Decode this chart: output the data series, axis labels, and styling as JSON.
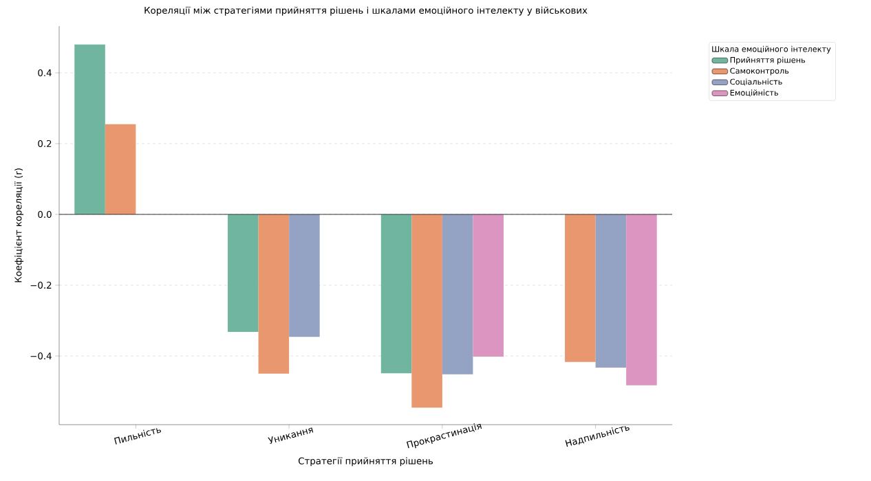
{
  "chart_data": {
    "type": "bar",
    "title": "Кореляції між стратегіями прийняття рішень і шкалами емоційного інтелекту у військових",
    "xlabel": "Стратегії прийняття рішень",
    "ylabel": "Коефіцієнт кореляції (r)",
    "legend_title": "Шкала емоційного інтелекту",
    "categories": [
      "Пильність",
      "Уникання",
      "Прокрастинація",
      "Надпильність"
    ],
    "series": [
      {
        "name": "Прийняття рішень",
        "color": "#70b59f",
        "values": [
          0.48,
          -0.332,
          -0.449,
          null
        ]
      },
      {
        "name": "Самоконтроль",
        "color": "#e9976f",
        "values": [
          0.255,
          -0.45,
          -0.546,
          -0.417
        ]
      },
      {
        "name": "Соціальність",
        "color": "#94a3c4",
        "values": [
          null,
          -0.346,
          -0.452,
          -0.433
        ]
      },
      {
        "name": "Емоційність",
        "color": "#db95c0",
        "values": [
          null,
          null,
          -0.402,
          -0.483
        ]
      }
    ],
    "ylim": [
      -0.594,
      0.532
    ],
    "yticks": [
      {
        "value": -0.4,
        "label": "−0.4"
      },
      {
        "value": -0.2,
        "label": "−0.2"
      },
      {
        "value": 0,
        "label": "0.0"
      },
      {
        "value": 0.2,
        "label": "0.2"
      },
      {
        "value": 0.4,
        "label": "0.4"
      }
    ],
    "ref_lines": [
      {
        "axis": "y",
        "value": 0,
        "color": "#333333"
      }
    ],
    "grid": "y",
    "legend": "top right"
  }
}
